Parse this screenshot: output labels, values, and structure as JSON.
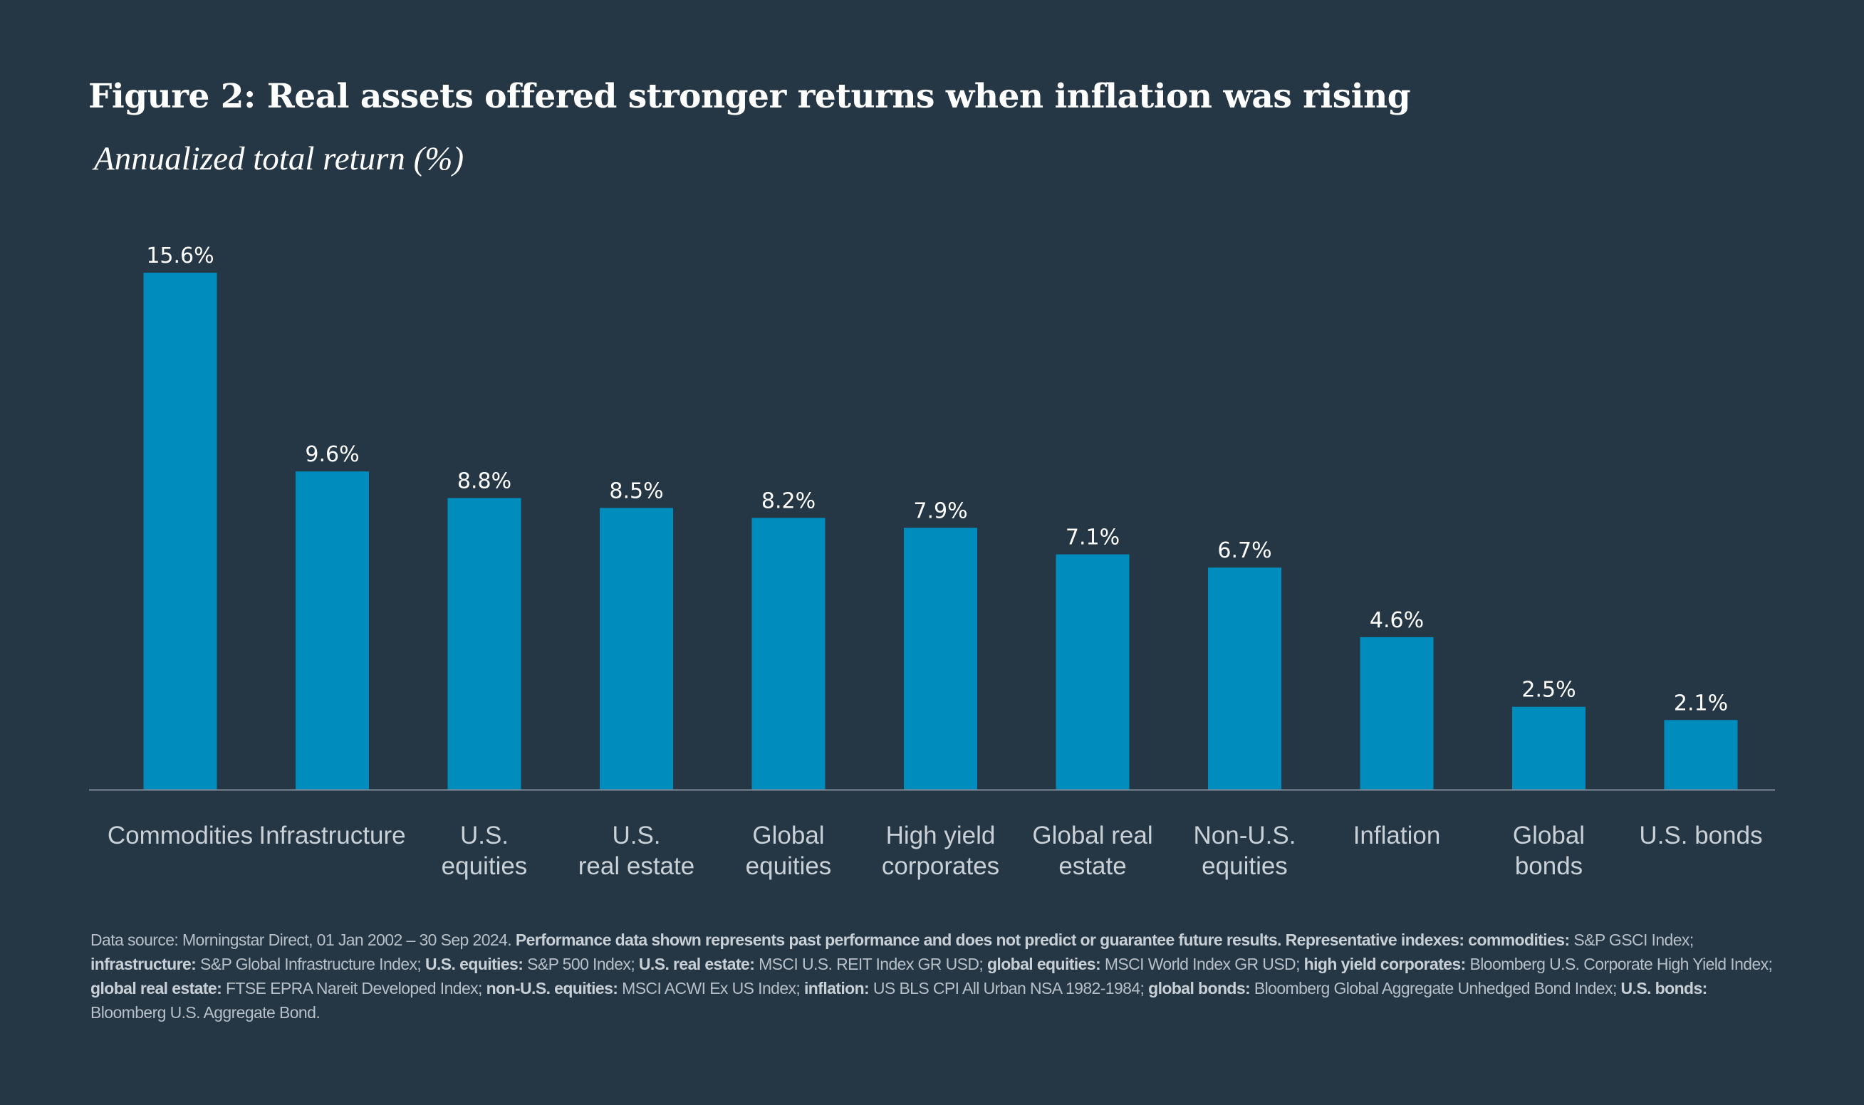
{
  "title": "Figure 2: Real assets offered stronger returns when inflation was rising",
  "subtitle": "Annualized total return (%)",
  "colors": {
    "background": "#253645",
    "bar": "#008dbd",
    "axis": "#7f8b96",
    "label": "#ffffff",
    "category": "#c9d0d6"
  },
  "chart_data": {
    "type": "bar",
    "title": "Figure 2: Real assets offered stronger returns when inflation was rising",
    "ylabel": "Annualized total return (%)",
    "xlabel": "",
    "ylim": [
      0,
      15.6
    ],
    "grid": false,
    "categories": [
      [
        "Commodities"
      ],
      [
        "Infrastructure"
      ],
      [
        "U.S.",
        "equities"
      ],
      [
        "U.S.",
        "real estate"
      ],
      [
        "Global",
        "equities"
      ],
      [
        "High yield",
        "corporates"
      ],
      [
        "Global real",
        "estate"
      ],
      [
        "Non-U.S.",
        "equities"
      ],
      [
        "Inflation"
      ],
      [
        "Global",
        "bonds"
      ],
      [
        "U.S. bonds"
      ]
    ],
    "values": [
      15.6,
      9.6,
      8.8,
      8.5,
      8.2,
      7.9,
      7.1,
      6.7,
      4.6,
      2.5,
      2.1
    ],
    "data_labels": [
      "15.6%",
      "9.6%",
      "8.8%",
      "8.5%",
      "8.2%",
      "7.9%",
      "7.1%",
      "6.7%",
      "4.6%",
      "2.5%",
      "2.1%"
    ]
  },
  "footnote": {
    "segments": [
      {
        "text": "Data source: Morningstar Direct, 01 Jan 2002 – 30 Sep 2024. ",
        "bold": false
      },
      {
        "text": "Performance data shown represents past performance and does not predict or guarantee future results. Representative indexes: commodities:",
        "bold": true
      },
      {
        "text": " S&P GSCI Index; ",
        "bold": false
      },
      {
        "text": "infrastructure:",
        "bold": true
      },
      {
        "text": " S&P Global Infrastructure Index; ",
        "bold": false
      },
      {
        "text": "U.S. equities:",
        "bold": true
      },
      {
        "text": " S&P 500 Index; ",
        "bold": false
      },
      {
        "text": "U.S. real estate:",
        "bold": true
      },
      {
        "text": " MSCI U.S. REIT Index GR USD; ",
        "bold": false
      },
      {
        "text": "global equities:",
        "bold": true
      },
      {
        "text": " MSCI World Index GR USD; ",
        "bold": false
      },
      {
        "text": "high yield corporates:",
        "bold": true
      },
      {
        "text": " Bloomberg U.S. Corporate High Yield Index; ",
        "bold": false
      },
      {
        "text": "global real estate:",
        "bold": true
      },
      {
        "text": " FTSE EPRA Nareit Developed Index; ",
        "bold": false
      },
      {
        "text": "non-U.S. equities:",
        "bold": true
      },
      {
        "text": " MSCI ACWI Ex US Index; ",
        "bold": false
      },
      {
        "text": "inflation:",
        "bold": true
      },
      {
        "text": " US BLS CPI All Urban NSA 1982-1984; ",
        "bold": false
      },
      {
        "text": "global bonds:",
        "bold": true
      },
      {
        "text": " Bloomberg Global Aggregate Unhedged Bond Index; ",
        "bold": false
      },
      {
        "text": "U.S. bonds:",
        "bold": true
      },
      {
        "text": " Bloomberg U.S. Aggregate Bond.",
        "bold": false
      }
    ]
  }
}
